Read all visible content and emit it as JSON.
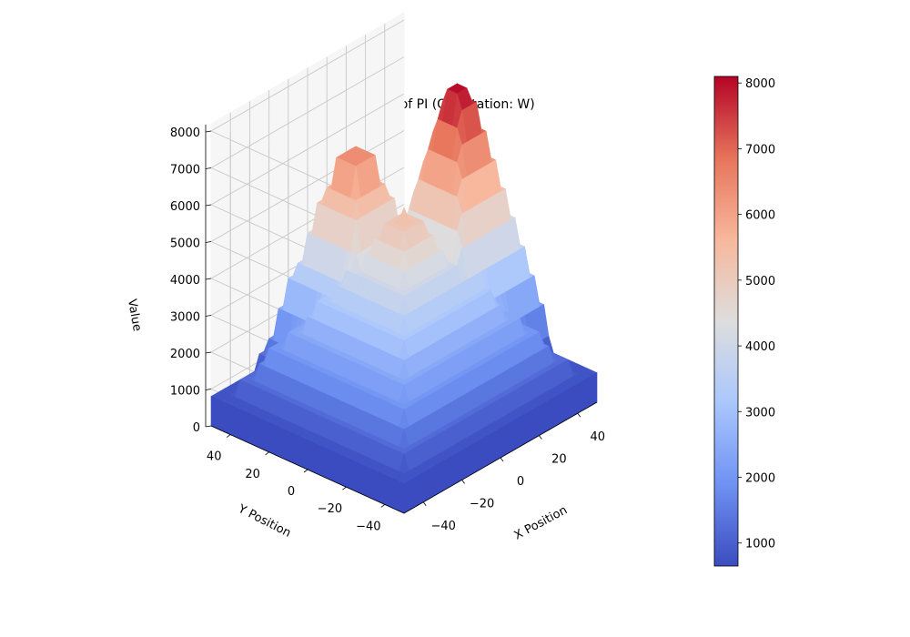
{
  "chart_data": {
    "type": "surface3d",
    "title": "Half-way Value Tablue of PI (Orientation: W)",
    "xlabel": "X Position",
    "ylabel": "Y Position",
    "zlabel": "Value",
    "xlim": [
      -50,
      50
    ],
    "ylim": [
      -50,
      50
    ],
    "zlim": [
      0,
      8200
    ],
    "x_ticks": [
      "−40",
      "−20",
      "0",
      "20",
      "40"
    ],
    "y_ticks": [
      "−40",
      "−20",
      "0",
      "20",
      "40"
    ],
    "z_ticks": [
      "0",
      "1000",
      "2000",
      "3000",
      "4000",
      "5000",
      "6000",
      "7000",
      "8000"
    ],
    "grid": true,
    "colormap": "coolwarm",
    "colormap_stops": [
      "#3b4cc0",
      "#6f92f3",
      "#aac7fd",
      "#dddddd",
      "#f7b89c",
      "#e7745b",
      "#b40426"
    ],
    "surface_base_value": 650,
    "surface_peaks": [
      {
        "x": 0,
        "y": 0,
        "value": 5600
      },
      {
        "x": 0,
        "y": 25,
        "value": 6300
      },
      {
        "x": 28,
        "y": 0,
        "value": 8100
      }
    ],
    "colorbar": {
      "min": 650,
      "max": 8100,
      "ticks": [
        "1000",
        "2000",
        "3000",
        "4000",
        "5000",
        "6000",
        "7000",
        "8000"
      ]
    }
  }
}
